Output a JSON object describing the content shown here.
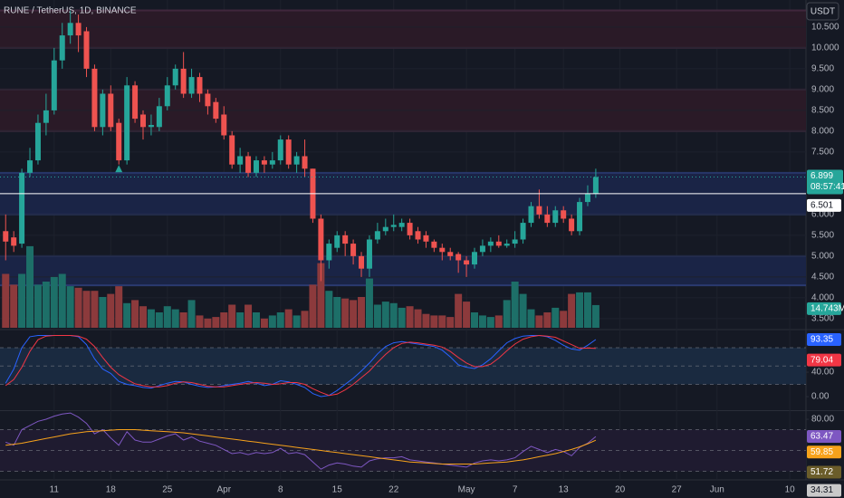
{
  "chart_data": [
    {
      "type": "candlestick",
      "title": "RUNE / TetherUS, 1D, BINANCE",
      "currency": "USDT",
      "countdown": "08:57:41",
      "x": [
        0,
        1,
        2,
        3,
        4,
        5,
        6,
        7,
        8,
        9,
        10,
        11,
        12,
        13,
        14,
        15,
        16,
        17,
        18,
        19,
        20,
        21,
        22,
        23,
        24,
        25,
        26,
        27,
        28,
        29,
        30,
        31,
        32,
        33,
        34,
        35,
        36,
        37,
        38,
        39,
        40,
        41,
        42,
        43,
        44,
        45,
        46,
        47,
        48,
        49,
        50,
        51,
        52,
        53,
        54,
        55,
        56,
        57,
        58,
        59,
        60,
        61,
        62,
        63,
        64,
        65,
        66,
        67,
        68,
        69,
        70,
        71,
        72,
        73
      ],
      "open": [
        5.6,
        5.45,
        5.3,
        7.0,
        7.3,
        8.2,
        8.5,
        9.7,
        10.3,
        10.6,
        10.4,
        9.5,
        8.1,
        8.9,
        8.2,
        7.3,
        9.1,
        8.4,
        8.1,
        8.1,
        8.6,
        9.1,
        9.5,
        8.9,
        9.3,
        8.9,
        8.7,
        8.4,
        7.9,
        7.2,
        7.4,
        7.0,
        7.3,
        7.2,
        7.3,
        7.8,
        7.2,
        7.4,
        7.1,
        5.9,
        4.9,
        5.2,
        5.5,
        5.3,
        5.0,
        4.7,
        5.4,
        5.6,
        5.7,
        5.7,
        5.8,
        5.6,
        5.5,
        5.35,
        5.2,
        5.1,
        5.05,
        4.9,
        4.8,
        5.1,
        5.25,
        5.35,
        5.25,
        5.3,
        5.4,
        5.8,
        6.2,
        6.0,
        5.8,
        6.1,
        5.9,
        5.6,
        6.3,
        6.5
      ],
      "high": [
        6.0,
        5.6,
        7.1,
        7.6,
        8.4,
        8.9,
        10.0,
        10.6,
        10.9,
        10.8,
        10.5,
        9.6,
        9.0,
        9.1,
        8.3,
        9.3,
        9.2,
        8.5,
        8.4,
        8.8,
        9.3,
        9.6,
        9.9,
        9.5,
        9.4,
        9.0,
        8.8,
        8.6,
        8.0,
        7.6,
        7.5,
        7.4,
        7.4,
        7.5,
        7.9,
        7.9,
        7.5,
        7.8,
        7.1,
        6.0,
        5.4,
        5.6,
        5.6,
        5.4,
        5.1,
        5.5,
        5.8,
        5.9,
        6.0,
        5.9,
        5.9,
        5.7,
        5.6,
        5.4,
        5.3,
        5.2,
        5.1,
        5.0,
        5.2,
        5.4,
        5.45,
        5.5,
        5.4,
        5.6,
        5.9,
        6.3,
        6.6,
        6.2,
        6.2,
        6.2,
        6.0,
        6.4,
        6.7,
        7.1
      ],
      "low": [
        4.9,
        5.1,
        5.2,
        6.9,
        7.2,
        7.9,
        8.4,
        9.5,
        10.1,
        9.9,
        9.3,
        8.0,
        7.9,
        8.0,
        7.2,
        7.2,
        8.2,
        7.8,
        7.9,
        8.0,
        8.5,
        9.0,
        8.8,
        8.8,
        8.7,
        8.4,
        8.2,
        7.8,
        7.1,
        7.0,
        6.9,
        6.9,
        7.0,
        7.1,
        7.2,
        7.1,
        7.0,
        6.9,
        5.8,
        4.4,
        4.7,
        5.1,
        5.0,
        4.8,
        4.5,
        4.5,
        5.3,
        5.5,
        5.6,
        5.6,
        5.4,
        5.3,
        5.2,
        5.1,
        4.9,
        4.9,
        4.6,
        4.5,
        4.7,
        5.0,
        5.1,
        5.2,
        5.2,
        5.2,
        5.3,
        5.7,
        5.9,
        5.7,
        5.7,
        5.8,
        5.5,
        5.5,
        6.2,
        6.4
      ],
      "close": [
        5.35,
        5.25,
        7.0,
        7.3,
        8.2,
        8.5,
        9.7,
        10.3,
        10.6,
        10.3,
        9.5,
        8.1,
        8.9,
        8.1,
        7.3,
        9.1,
        8.3,
        8.1,
        8.15,
        8.6,
        9.1,
        9.5,
        8.9,
        9.3,
        8.9,
        8.6,
        8.3,
        7.9,
        7.2,
        7.4,
        7.0,
        7.3,
        7.2,
        7.3,
        7.8,
        7.2,
        7.4,
        7.1,
        5.9,
        4.9,
        5.3,
        5.5,
        5.3,
        5.0,
        4.7,
        5.4,
        5.6,
        5.7,
        5.75,
        5.8,
        5.5,
        5.4,
        5.35,
        5.2,
        5.1,
        5.0,
        4.9,
        4.8,
        5.1,
        5.25,
        5.35,
        5.25,
        5.3,
        5.4,
        5.8,
        6.2,
        6.0,
        5.8,
        6.1,
        5.9,
        5.6,
        6.3,
        6.5,
        6.899
      ],
      "volume": [
        35,
        28,
        35,
        53,
        28,
        30,
        33,
        35,
        27,
        26,
        24,
        24,
        20,
        22,
        27,
        16,
        18,
        14,
        12,
        10,
        14,
        12,
        10,
        18,
        8,
        6,
        7,
        10,
        15,
        10,
        15,
        10,
        6,
        8,
        10,
        12,
        8,
        11,
        28,
        42,
        24,
        20,
        19,
        18,
        20,
        32,
        15,
        17,
        16,
        13,
        14,
        12,
        9,
        8,
        8,
        7,
        22,
        17,
        10,
        8,
        7,
        8,
        18,
        30,
        22,
        12,
        8,
        10,
        13,
        11,
        22,
        23,
        23,
        14.743
      ],
      "volume_label": {
        "value": 14.743,
        "label": "14.743M"
      },
      "up_color": "#26a69a",
      "down_color": "#ef5350",
      "volume_up_color": "#1d6f68",
      "volume_down_color": "#8c3a3c",
      "last_price": 6.899,
      "hline": 6.501,
      "zones": [
        {
          "low": 10.0,
          "high": 10.9,
          "color": "#2a1a27"
        },
        {
          "low": 8.0,
          "high": 9.0,
          "color": "#2a1a27"
        },
        {
          "low": 6.0,
          "high": 7.0,
          "color": "#1a2446"
        },
        {
          "low": 4.3,
          "high": 5.0,
          "color": "#1a2446"
        }
      ],
      "markers": [
        {
          "x": 14,
          "y": 7.1,
          "color": "#26a69a"
        }
      ],
      "xlim": [
        -0.7,
        99
      ],
      "ylim": [
        3.28,
        11.15
      ],
      "yticks": [
        {
          "value": 10.5,
          "label": "10.500"
        },
        {
          "value": 10,
          "label": "10.000"
        },
        {
          "value": 9.5,
          "label": "9.500"
        },
        {
          "value": 9,
          "label": "9.000"
        },
        {
          "value": 8.5,
          "label": "8.500"
        },
        {
          "value": 8,
          "label": "8.000"
        },
        {
          "value": 7.5,
          "label": "7.500"
        },
        {
          "value": 6,
          "label": "6.000"
        },
        {
          "value": 5.5,
          "label": "5.500"
        },
        {
          "value": 5,
          "label": "5.000"
        },
        {
          "value": 4.5,
          "label": "4.500"
        },
        {
          "value": 4,
          "label": "4.000"
        },
        {
          "value": 3.5,
          "label": "3.500"
        }
      ],
      "xticks": [
        {
          "value": 6,
          "label": "11"
        },
        {
          "value": 13,
          "label": "18"
        },
        {
          "value": 20,
          "label": "25"
        },
        {
          "value": 27,
          "label": "Apr"
        },
        {
          "value": 34,
          "label": "8"
        },
        {
          "value": 41,
          "label": "15"
        },
        {
          "value": 48,
          "label": "22"
        },
        {
          "value": 57,
          "label": "May"
        },
        {
          "value": 63,
          "label": "7"
        },
        {
          "value": 69,
          "label": "13"
        },
        {
          "value": 76,
          "label": "20"
        },
        {
          "value": 83,
          "label": "27"
        },
        {
          "value": 88,
          "label": "Jun"
        },
        {
          "value": 97,
          "label": "10"
        }
      ],
      "grid": true
    },
    {
      "type": "line",
      "ylim": [
        -20.7,
        106.7
      ],
      "band": [
        20,
        80
      ],
      "mid": 50,
      "band_color": "#1a2a40",
      "yticks": [
        {
          "value": 40,
          "label": "40.00"
        },
        {
          "value": 0,
          "label": "0.00"
        }
      ],
      "series": [
        {
          "color": "#2962ff",
          "values": [
            22,
            45,
            80,
            98,
            100,
            100,
            100,
            100,
            100,
            98,
            85,
            62,
            45,
            38,
            25,
            20,
            18,
            15,
            14,
            18,
            22,
            25,
            24,
            20,
            17,
            15,
            16,
            18,
            20,
            22,
            25,
            22,
            18,
            20,
            26,
            24,
            20,
            15,
            5,
            0,
            2,
            10,
            20,
            30,
            42,
            55,
            70,
            82,
            88,
            90,
            88,
            86,
            84,
            82,
            76,
            65,
            52,
            48,
            46,
            52,
            62,
            75,
            88,
            95,
            99,
            100,
            100,
            98,
            92,
            84,
            78,
            76,
            84,
            93.35
          ],
          "last_label": 93.35
        },
        {
          "color": "#f23645",
          "values": [
            18,
            28,
            48,
            74,
            93,
            99,
            100,
            100,
            100,
            99,
            94,
            82,
            64,
            48,
            36,
            28,
            21,
            18,
            16,
            16,
            18,
            22,
            24,
            23,
            20,
            17,
            16,
            16,
            18,
            20,
            22,
            23,
            22,
            20,
            21,
            23,
            23,
            20,
            13,
            7,
            2,
            4,
            11,
            20,
            31,
            42,
            56,
            69,
            80,
            87,
            89,
            88,
            86,
            84,
            81,
            74,
            64,
            55,
            49,
            49,
            53,
            63,
            75,
            86,
            94,
            98,
            100,
            99,
            97,
            91,
            85,
            79,
            79.5,
            79.04
          ],
          "last_label": 79.04
        }
      ]
    },
    {
      "type": "line",
      "ylim": [
        23.5,
        87
      ],
      "band": [
        30,
        70
      ],
      "mid": 50,
      "band_color": "#1f1b30",
      "yticks": [
        {
          "value": 80,
          "label": "80.00"
        }
      ],
      "series": [
        {
          "color": "#7e57c2",
          "values": [
            58,
            55,
            70,
            74,
            78,
            80,
            83,
            85,
            86,
            82,
            76,
            66,
            70,
            62,
            55,
            68,
            60,
            58,
            58,
            61,
            64,
            66,
            60,
            63,
            59,
            57,
            55,
            51,
            47,
            48,
            46,
            48,
            47,
            48,
            52,
            47,
            48,
            46,
            39,
            32,
            36,
            38,
            37,
            35,
            34,
            40,
            42,
            43,
            43,
            44,
            41,
            40,
            39,
            38,
            37,
            36,
            35,
            34,
            38,
            40,
            41,
            40,
            41,
            43,
            49,
            54,
            51,
            48,
            51,
            49,
            45,
            53,
            57,
            63.47
          ],
          "last_label": 63.47
        },
        {
          "color": "#f7a21b",
          "values": [
            55,
            56,
            57,
            58.5,
            60,
            61.5,
            63,
            64.5,
            66,
            67,
            68,
            68.5,
            69,
            69.5,
            70,
            70,
            70,
            69.5,
            69,
            68.5,
            68,
            67.5,
            67,
            66,
            65,
            64,
            63,
            62,
            61,
            60,
            59,
            58,
            57,
            56,
            55,
            54,
            53,
            52,
            51,
            50,
            49,
            48,
            47,
            46,
            45,
            44,
            43,
            42,
            41,
            40,
            39,
            38.5,
            38,
            37.5,
            37,
            37,
            37,
            37,
            37,
            37.5,
            38,
            38.5,
            39,
            40,
            41,
            42.5,
            44,
            45.5,
            47,
            49,
            51,
            53.5,
            56.5,
            59.85
          ],
          "last_label": 59.85
        }
      ],
      "extra_labels": [
        {
          "value": 51.72,
          "color": "#6b5d2a"
        },
        {
          "value": 34.31,
          "color": "#c9c9c9"
        }
      ]
    }
  ]
}
